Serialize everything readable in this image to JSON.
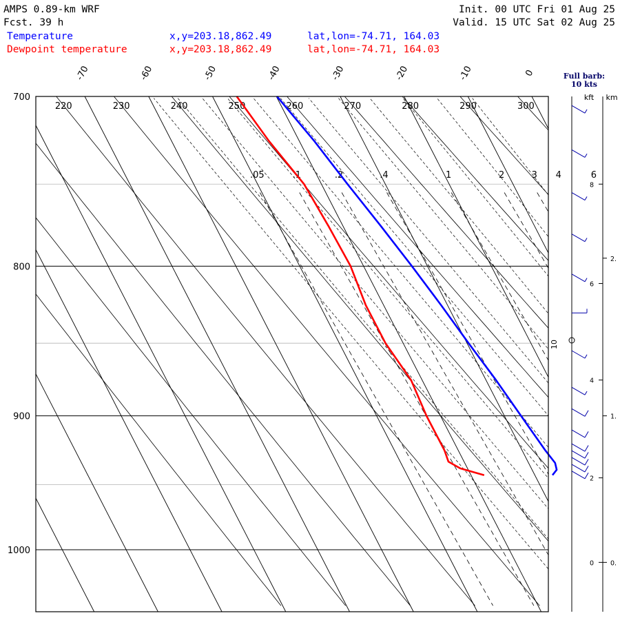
{
  "header": {
    "model": "AMPS 0.89-km WRF",
    "forecast": "Fcst.   39 h",
    "init": "Init. 00 UTC Fri 01 Aug 25",
    "valid": "Valid. 15 UTC Sat 02 Aug 25",
    "temp_name": "Temperature",
    "temp_xy": "x,y=203.18,862.49",
    "temp_latlon": "lat,lon=-74.71, 164.03",
    "dew_name": "Dewpoint temperature",
    "dew_xy": "x,y=203.18,862.49",
    "dew_latlon": "lat,lon=-74.71, 164.03",
    "barb_note_1": "Full barb:",
    "barb_note_2": "10 kts",
    "kft_label": "kft",
    "km_label": "km"
  },
  "colors": {
    "temperature": "#0000ff",
    "dewpoint": "#ff0000",
    "frame": "#000000"
  },
  "chart_data": {
    "type": "line",
    "diagram": "skew-T log-p",
    "pressure_levels": [
      700,
      800,
      900,
      1000
    ],
    "pressure_labels": [
      "700",
      "800",
      "900",
      "1000"
    ],
    "isotherm_labels": [
      "-70",
      "-60",
      "-50",
      "-40",
      "-30",
      "-20",
      "-10",
      "0"
    ],
    "isotherms_c": [
      -70,
      -60,
      -50,
      -40,
      -30,
      -20,
      -10,
      0
    ],
    "theta_labels": [
      "220",
      "230",
      "240",
      "250",
      "260",
      "270",
      "280",
      "290",
      "300"
    ],
    "theta_k": [
      220,
      230,
      240,
      250,
      260,
      270,
      280,
      290,
      300
    ],
    "mixing_ratio_labels": [
      ".05",
      ".1",
      ".2",
      ".4",
      "1",
      "2",
      "3",
      "4",
      "6"
    ],
    "mixing_ratios": [
      0.05,
      0.1,
      0.2,
      0.4,
      1,
      2,
      3,
      4,
      6
    ],
    "ylim_hpa": [
      1045,
      700
    ],
    "series": [
      {
        "name": "Temperature",
        "color": "#0000ff",
        "points": [
          {
            "p": 943,
            "t": -27.6
          },
          {
            "p": 939,
            "t": -26.5
          },
          {
            "p": 934,
            "t": -26.2
          },
          {
            "p": 925,
            "t": -26.7
          },
          {
            "p": 900,
            "t": -27.7
          },
          {
            "p": 875,
            "t": -28.7
          },
          {
            "p": 850,
            "t": -30.0
          },
          {
            "p": 825,
            "t": -31.2
          },
          {
            "p": 800,
            "t": -32.6
          },
          {
            "p": 775,
            "t": -34.2
          },
          {
            "p": 750,
            "t": -36.0
          },
          {
            "p": 725,
            "t": -37.7
          },
          {
            "p": 700,
            "t": -39.9
          }
        ]
      },
      {
        "name": "Dewpoint temperature",
        "color": "#ff0000",
        "points": [
          {
            "p": 943,
            "t": -38.3
          },
          {
            "p": 938,
            "t": -41.5
          },
          {
            "p": 933,
            "t": -42.8
          },
          {
            "p": 925,
            "t": -42.5
          },
          {
            "p": 900,
            "t": -42.5
          },
          {
            "p": 875,
            "t": -42.0
          },
          {
            "p": 850,
            "t": -43.0
          },
          {
            "p": 825,
            "t": -43.0
          },
          {
            "p": 800,
            "t": -42.2
          },
          {
            "p": 775,
            "t": -42.4
          },
          {
            "p": 750,
            "t": -42.8
          },
          {
            "p": 725,
            "t": -44.8
          },
          {
            "p": 700,
            "t": -46.2
          }
        ]
      }
    ],
    "wind_barbs": [
      {
        "p": 940,
        "speed_kts": 8,
        "dir_deg": 300
      },
      {
        "p": 935,
        "speed_kts": 8,
        "dir_deg": 300
      },
      {
        "p": 930,
        "speed_kts": 8,
        "dir_deg": 300
      },
      {
        "p": 925,
        "speed_kts": 8,
        "dir_deg": 300
      },
      {
        "p": 920,
        "speed_kts": 8,
        "dir_deg": 300
      },
      {
        "p": 910,
        "speed_kts": 8,
        "dir_deg": 300
      },
      {
        "p": 895,
        "speed_kts": 8,
        "dir_deg": 300
      },
      {
        "p": 880,
        "speed_kts": 5,
        "dir_deg": 300
      },
      {
        "p": 855,
        "speed_kts": 5,
        "dir_deg": 300
      },
      {
        "p": 830,
        "speed_kts": 5,
        "dir_deg": 270
      },
      {
        "p": 805,
        "speed_kts": 5,
        "dir_deg": 300
      },
      {
        "p": 780,
        "speed_kts": 5,
        "dir_deg": 300
      },
      {
        "p": 755,
        "speed_kts": 5,
        "dir_deg": 300
      },
      {
        "p": 730,
        "speed_kts": 5,
        "dir_deg": 300
      },
      {
        "p": 705,
        "speed_kts": 5,
        "dir_deg": 300
      }
    ],
    "barb_axis_note": "10",
    "height_kft": [
      {
        "label": "8",
        "p": 750
      },
      {
        "label": "6",
        "p": 811
      },
      {
        "label": "4",
        "p": 875
      },
      {
        "label": "2",
        "p": 945
      },
      {
        "label": "0",
        "p": 1010
      }
    ],
    "height_km": [
      {
        "label": "2.",
        "p": 795
      },
      {
        "label": "1.",
        "p": 900
      },
      {
        "label": "0.",
        "p": 1010
      }
    ]
  }
}
